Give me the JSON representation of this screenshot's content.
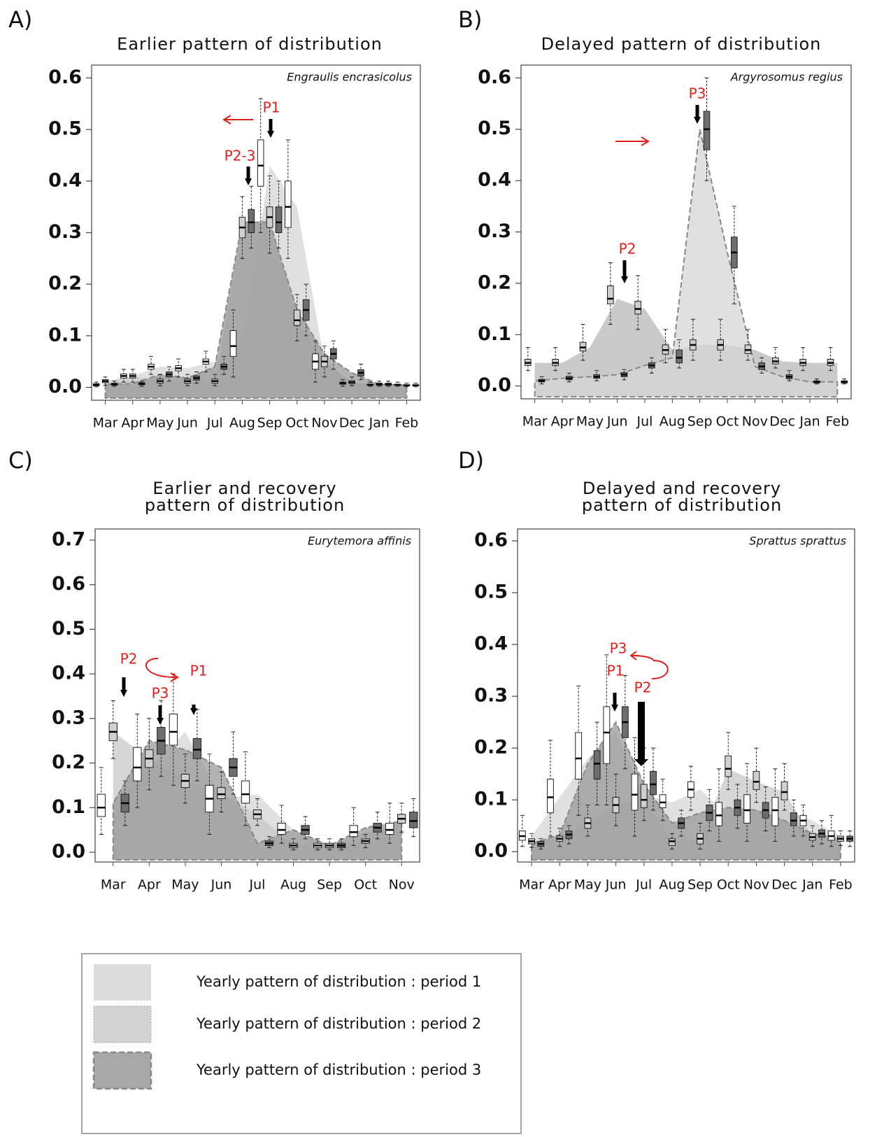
{
  "chart_data": [
    {
      "type": "box",
      "label": "A)",
      "title": "Earlier pattern of distribution",
      "species": "Engraulis encrasicolus",
      "categories": [
        "Mar",
        "Apr",
        "May",
        "Jun",
        "Jul",
        "Aug",
        "Sep",
        "Oct",
        "Nov",
        "Dec",
        "Jan",
        "Feb"
      ],
      "ylim": [
        -0.025,
        0.625
      ],
      "yticks": [
        {
          "value": 0,
          "label": "0.0"
        },
        0.1,
        0.2,
        0.3,
        0.4,
        0.5,
        0.6
      ],
      "annotations": [
        "P1",
        "P2-3"
      ],
      "series": [
        {
          "color": "#ffffff",
          "area_color": "#d6d6d6",
          "values": [
            0.005,
            0.022,
            0.04,
            0.037,
            0.05,
            0.08,
            0.43,
            0.35,
            0.05,
            0.008,
            0.005,
            0.005
          ],
          "q1": [
            0.003,
            0.018,
            0.035,
            0.032,
            0.045,
            0.06,
            0.39,
            0.31,
            0.035,
            0.006,
            0.004,
            0.004
          ],
          "q3": [
            0.007,
            0.026,
            0.045,
            0.042,
            0.055,
            0.11,
            0.48,
            0.4,
            0.065,
            0.01,
            0.006,
            0.006
          ],
          "low": [
            0.001,
            0.01,
            0.025,
            0.02,
            0.03,
            0.02,
            0.3,
            0.25,
            0.01,
            0.002,
            0.002,
            0.002
          ],
          "high": [
            0.01,
            0.035,
            0.06,
            0.055,
            0.07,
            0.15,
            0.56,
            0.48,
            0.09,
            0.015,
            0.01,
            0.01
          ]
        },
        {
          "color": "#d0d0d0",
          "area_color": "#c8c8c8",
          "values": [
            0.012,
            0.022,
            0.012,
            0.012,
            0.012,
            0.31,
            0.33,
            0.13,
            0.05,
            0.01,
            0.006,
            0.004
          ],
          "q1": [
            0.009,
            0.018,
            0.008,
            0.008,
            0.008,
            0.29,
            0.31,
            0.12,
            0.04,
            0.007,
            0.004,
            0.003
          ],
          "q3": [
            0.015,
            0.026,
            0.016,
            0.016,
            0.016,
            0.33,
            0.35,
            0.15,
            0.06,
            0.013,
            0.008,
            0.005
          ],
          "low": [
            0.004,
            0.01,
            0.003,
            0.003,
            0.003,
            0.25,
            0.26,
            0.09,
            0.02,
            0.003,
            0.002,
            0.001
          ],
          "high": [
            0.02,
            0.035,
            0.025,
            0.025,
            0.025,
            0.37,
            0.41,
            0.18,
            0.08,
            0.02,
            0.012,
            0.008
          ]
        },
        {
          "color": "#6e6e6e",
          "area_color": "#9a9a9a",
          "values": [
            0.006,
            0.007,
            0.025,
            0.018,
            0.04,
            0.32,
            0.32,
            0.15,
            0.065,
            0.028,
            0.006,
            0.004
          ],
          "q1": [
            0.004,
            0.005,
            0.02,
            0.014,
            0.035,
            0.3,
            0.3,
            0.13,
            0.055,
            0.022,
            0.004,
            0.003
          ],
          "q3": [
            0.008,
            0.009,
            0.03,
            0.022,
            0.045,
            0.345,
            0.35,
            0.17,
            0.075,
            0.034,
            0.008,
            0.005
          ],
          "low": [
            0.002,
            0.002,
            0.012,
            0.008,
            0.025,
            0.27,
            0.27,
            0.1,
            0.035,
            0.015,
            0.002,
            0.001
          ],
          "high": [
            0.012,
            0.012,
            0.04,
            0.03,
            0.06,
            0.39,
            0.4,
            0.2,
            0.09,
            0.045,
            0.012,
            0.008
          ]
        }
      ]
    },
    {
      "type": "box",
      "label": "B)",
      "title": "Delayed pattern of distribution",
      "species": "Argyrosomus regius",
      "categories": [
        "Mar",
        "Apr",
        "May",
        "Jun",
        "Jul",
        "Aug",
        "Sep",
        "Oct",
        "Nov",
        "Dec",
        "Jan",
        "Feb"
      ],
      "ylim": [
        -0.025,
        0.625
      ],
      "yticks": [
        {
          "value": 0,
          "label": "0.0"
        },
        0.1,
        0.2,
        0.3,
        0.4,
        0.5,
        0.6
      ],
      "annotations": [
        "P3",
        "P2"
      ],
      "series": [
        {
          "color": "#d0d0d0",
          "area_color": "#b8b8b8",
          "values": [
            0.045,
            0.045,
            0.075,
            0.17,
            0.15,
            0.07,
            0.08,
            0.08,
            0.07,
            0.048,
            0.045,
            0.045
          ],
          "q1": [
            0.04,
            0.04,
            0.068,
            0.16,
            0.14,
            0.062,
            0.07,
            0.07,
            0.063,
            0.043,
            0.04,
            0.04
          ],
          "q3": [
            0.052,
            0.052,
            0.085,
            0.195,
            0.165,
            0.08,
            0.09,
            0.09,
            0.08,
            0.055,
            0.052,
            0.052
          ],
          "low": [
            0.03,
            0.03,
            0.05,
            0.12,
            0.11,
            0.045,
            0.05,
            0.05,
            0.05,
            0.035,
            0.03,
            0.03
          ],
          "high": [
            0.075,
            0.075,
            0.12,
            0.24,
            0.215,
            0.11,
            0.13,
            0.13,
            0.11,
            0.075,
            0.075,
            0.075
          ]
        },
        {
          "color": "#6e6e6e",
          "area_color": "#d6d6d6",
          "values": [
            0.01,
            0.015,
            0.018,
            0.022,
            0.04,
            0.055,
            0.5,
            0.26,
            0.038,
            0.018,
            0.008,
            0.008
          ],
          "q1": [
            0.008,
            0.012,
            0.015,
            0.018,
            0.035,
            0.045,
            0.46,
            0.23,
            0.032,
            0.014,
            0.006,
            0.006
          ],
          "q3": [
            0.013,
            0.019,
            0.022,
            0.026,
            0.045,
            0.07,
            0.535,
            0.29,
            0.045,
            0.022,
            0.01,
            0.01
          ],
          "low": [
            0.004,
            0.008,
            0.01,
            0.012,
            0.025,
            0.035,
            0.4,
            0.16,
            0.025,
            0.01,
            0.004,
            0.004
          ],
          "high": [
            0.018,
            0.025,
            0.03,
            0.032,
            0.055,
            0.09,
            0.6,
            0.35,
            0.055,
            0.03,
            0.014,
            0.014
          ]
        }
      ]
    },
    {
      "type": "box",
      "label": "C)",
      "title": [
        "Earlier  and recovery",
        "pattern of distribution"
      ],
      "species": "Eurytemora affinis",
      "categories": [
        "Mar",
        "Apr",
        "May",
        "Jun",
        "Jul",
        "Aug",
        "Sep",
        "Oct",
        "Nov"
      ],
      "ylim": [
        -0.022,
        0.725
      ],
      "yticks": [
        {
          "value": 0,
          "label": "0.0"
        },
        0.1,
        0.2,
        0.3,
        0.4,
        0.5,
        0.6,
        0.7
      ],
      "annotations": [
        "P2",
        "P1",
        "P3"
      ],
      "series": [
        {
          "color": "#ffffff",
          "area_color": "#d6d6d6",
          "values": [
            0.1,
            0.19,
            0.27,
            0.12,
            0.13,
            0.05,
            0.015,
            0.045,
            0.05
          ],
          "q1": [
            0.08,
            0.16,
            0.24,
            0.09,
            0.11,
            0.04,
            0.01,
            0.035,
            0.04
          ],
          "q3": [
            0.13,
            0.235,
            0.31,
            0.15,
            0.16,
            0.065,
            0.02,
            0.06,
            0.065
          ],
          "low": [
            0.04,
            0.1,
            0.15,
            0.04,
            0.06,
            0.02,
            0.005,
            0.015,
            0.02
          ],
          "high": [
            0.19,
            0.31,
            0.4,
            0.22,
            0.225,
            0.105,
            0.03,
            0.1,
            0.11
          ]
        },
        {
          "color": "#d0d0d0",
          "area_color": "#c8c8c8",
          "values": [
            0.27,
            0.21,
            0.16,
            0.13,
            0.085,
            0.015,
            0.015,
            0.025,
            0.075
          ],
          "q1": [
            0.25,
            0.19,
            0.145,
            0.12,
            0.075,
            0.01,
            0.01,
            0.02,
            0.065
          ],
          "q3": [
            0.29,
            0.23,
            0.175,
            0.145,
            0.095,
            0.02,
            0.02,
            0.03,
            0.085
          ],
          "low": [
            0.21,
            0.14,
            0.11,
            0.09,
            0.06,
            0.005,
            0.005,
            0.01,
            0.045
          ],
          "high": [
            0.34,
            0.3,
            0.22,
            0.18,
            0.12,
            0.03,
            0.03,
            0.04,
            0.11
          ]
        },
        {
          "color": "#6e6e6e",
          "area_color": "#9a9a9a",
          "values": [
            0.11,
            0.25,
            0.23,
            0.19,
            0.02,
            0.05,
            0.015,
            0.055,
            0.07
          ],
          "q1": [
            0.09,
            0.22,
            0.21,
            0.17,
            0.015,
            0.04,
            0.01,
            0.045,
            0.055
          ],
          "q3": [
            0.13,
            0.28,
            0.255,
            0.21,
            0.025,
            0.06,
            0.02,
            0.065,
            0.09
          ],
          "low": [
            0.06,
            0.17,
            0.16,
            0.13,
            0.01,
            0.03,
            0.005,
            0.03,
            0.035
          ],
          "high": [
            0.16,
            0.34,
            0.32,
            0.27,
            0.035,
            0.08,
            0.03,
            0.09,
            0.12
          ]
        }
      ]
    },
    {
      "type": "box",
      "label": "D)",
      "title": [
        "Delayed  and recovery",
        "pattern of distribution"
      ],
      "species": "Sprattus sprattus",
      "categories": [
        "Mar",
        "Apr",
        "May",
        "Jun",
        "Jul",
        "Aug",
        "Sep",
        "Oct",
        "Nov",
        "Dec",
        "Jan",
        "Feb"
      ],
      "ylim": [
        -0.02,
        0.623
      ],
      "yticks": [
        {
          "value": 0,
          "label": "0.0"
        },
        0.1,
        0.2,
        0.3,
        0.4,
        0.5,
        0.6
      ],
      "annotations": [
        "P3",
        "P1",
        "P2"
      ],
      "series": [
        {
          "color": "#ffffff",
          "area_color": "#d6d6d6",
          "values": [
            0.03,
            0.105,
            0.18,
            0.23,
            0.11,
            0.095,
            0.12,
            0.07,
            0.08,
            0.08,
            0.06,
            0.03
          ],
          "q1": [
            0.022,
            0.075,
            0.14,
            0.17,
            0.08,
            0.085,
            0.105,
            0.05,
            0.055,
            0.05,
            0.05,
            0.022
          ],
          "q3": [
            0.04,
            0.14,
            0.23,
            0.28,
            0.15,
            0.11,
            0.135,
            0.095,
            0.11,
            0.105,
            0.07,
            0.04
          ],
          "low": [
            0.01,
            0.03,
            0.07,
            0.09,
            0.03,
            0.06,
            0.08,
            0.02,
            0.02,
            0.02,
            0.03,
            0.01
          ],
          "high": [
            0.07,
            0.215,
            0.32,
            0.38,
            0.22,
            0.14,
            0.165,
            0.16,
            0.17,
            0.16,
            0.09,
            0.07
          ]
        },
        {
          "color": "#d0d0d0",
          "area_color": "#c8c8c8",
          "values": [
            0.02,
            0.025,
            0.055,
            0.09,
            0.1,
            0.02,
            0.025,
            0.16,
            0.135,
            0.115,
            0.028,
            0.025
          ],
          "q1": [
            0.015,
            0.02,
            0.045,
            0.075,
            0.085,
            0.012,
            0.015,
            0.145,
            0.12,
            0.1,
            0.022,
            0.02
          ],
          "q3": [
            0.025,
            0.03,
            0.065,
            0.105,
            0.13,
            0.025,
            0.035,
            0.185,
            0.155,
            0.135,
            0.035,
            0.03
          ],
          "low": [
            0.008,
            0.01,
            0.03,
            0.05,
            0.06,
            0.005,
            0.005,
            0.12,
            0.095,
            0.08,
            0.01,
            0.012
          ],
          "high": [
            0.035,
            0.045,
            0.09,
            0.15,
            0.2,
            0.035,
            0.055,
            0.23,
            0.2,
            0.17,
            0.05,
            0.04
          ]
        },
        {
          "color": "#6e6e6e",
          "area_color": "#9a9a9a",
          "values": [
            0.015,
            0.033,
            0.17,
            0.25,
            0.13,
            0.055,
            0.075,
            0.085,
            0.08,
            0.06,
            0.035,
            0.025
          ],
          "q1": [
            0.01,
            0.025,
            0.14,
            0.22,
            0.11,
            0.045,
            0.06,
            0.07,
            0.065,
            0.05,
            0.028,
            0.02
          ],
          "q3": [
            0.02,
            0.04,
            0.195,
            0.28,
            0.155,
            0.065,
            0.09,
            0.1,
            0.095,
            0.075,
            0.042,
            0.03
          ],
          "low": [
            0.005,
            0.015,
            0.09,
            0.16,
            0.08,
            0.03,
            0.04,
            0.045,
            0.04,
            0.03,
            0.015,
            0.01
          ],
          "high": [
            0.025,
            0.05,
            0.25,
            0.34,
            0.2,
            0.08,
            0.12,
            0.13,
            0.125,
            0.1,
            0.06,
            0.04
          ]
        }
      ]
    }
  ],
  "legend": [
    {
      "label": "Yearly pattern of distribution : period 1",
      "color": "#dcdcdc"
    },
    {
      "label": "Yearly pattern of distribution : period 2",
      "color": "#d2d2d2"
    },
    {
      "label": "Yearly pattern of distribution : period 3",
      "color": "#a8a8a8"
    }
  ]
}
